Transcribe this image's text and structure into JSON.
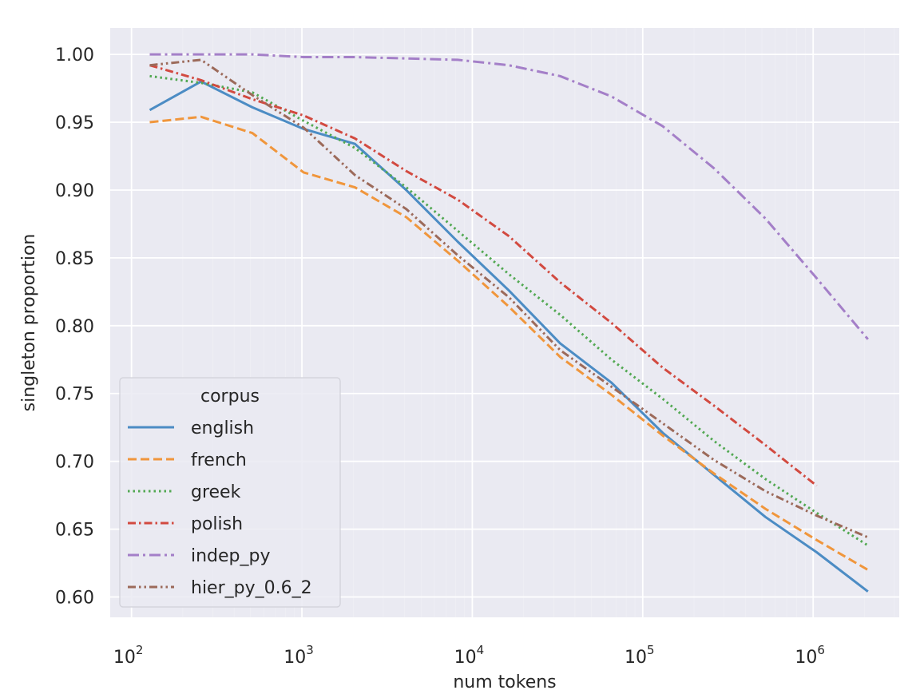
{
  "chart_data": {
    "type": "line",
    "xlabel": "num tokens",
    "ylabel": "singleton proportion",
    "xscale": "log",
    "xlim": [
      75,
      3200000
    ],
    "ylim": [
      0.585,
      1.0195
    ],
    "xticks": [
      {
        "value": 100,
        "base": "10",
        "exp": "2"
      },
      {
        "value": 1000,
        "base": "10",
        "exp": "3"
      },
      {
        "value": 10000,
        "base": "10",
        "exp": "4"
      },
      {
        "value": 100000,
        "base": "10",
        "exp": "5"
      },
      {
        "value": 1000000,
        "base": "10",
        "exp": "6"
      }
    ],
    "yticks": [
      {
        "value": 0.6,
        "label": "0.60"
      },
      {
        "value": 0.65,
        "label": "0.65"
      },
      {
        "value": 0.7,
        "label": "0.70"
      },
      {
        "value": 0.75,
        "label": "0.75"
      },
      {
        "value": 0.8,
        "label": "0.80"
      },
      {
        "value": 0.85,
        "label": "0.85"
      },
      {
        "value": 0.9,
        "label": "0.90"
      },
      {
        "value": 0.95,
        "label": "0.95"
      },
      {
        "value": 1.0,
        "label": "1.00"
      }
    ],
    "grid": true,
    "legend": {
      "title": "corpus",
      "placement": "lower-left"
    },
    "series": [
      {
        "name": "english",
        "color": "#4c8cc4",
        "dash": "solid",
        "x": [
          128,
          256,
          512,
          1024,
          2048,
          4096,
          8192,
          16384,
          32768,
          65536,
          131072,
          262144,
          524288,
          1048576,
          2097152
        ],
        "y": [
          0.959,
          0.98,
          0.961,
          0.945,
          0.934,
          0.9,
          0.862,
          0.826,
          0.787,
          0.758,
          0.721,
          0.69,
          0.659,
          0.633,
          0.604
        ]
      },
      {
        "name": "french",
        "color": "#f0963c",
        "dash": "dashed",
        "x": [
          128,
          256,
          512,
          1024,
          2048,
          4096,
          8192,
          16384,
          32768,
          65536,
          131072,
          262144,
          524288,
          1048576,
          2097152
        ],
        "y": [
          0.95,
          0.954,
          0.942,
          0.913,
          0.902,
          0.88,
          0.848,
          0.814,
          0.777,
          0.749,
          0.719,
          0.691,
          0.665,
          0.642,
          0.62
        ]
      },
      {
        "name": "greek",
        "color": "#52a852",
        "dash": "dotted",
        "x": [
          128,
          256,
          512,
          1024,
          2048,
          4096,
          8192,
          16384,
          32768,
          65536,
          131072,
          262144,
          524288,
          1048576,
          2097152
        ],
        "y": [
          0.984,
          0.979,
          0.972,
          0.951,
          0.931,
          0.902,
          0.87,
          0.838,
          0.808,
          0.775,
          0.746,
          0.715,
          0.687,
          0.662,
          0.638
        ]
      },
      {
        "name": "polish",
        "color": "#d24a40",
        "dash": "dashdot",
        "x": [
          128,
          256,
          512,
          1024,
          2048,
          4096,
          8192,
          16384,
          32768,
          65536,
          131072,
          262144,
          524288,
          1048576
        ],
        "y": [
          0.992,
          0.981,
          0.967,
          0.955,
          0.938,
          0.914,
          0.893,
          0.866,
          0.832,
          0.802,
          0.769,
          0.741,
          0.712,
          0.682
        ]
      },
      {
        "name": "indep_py",
        "color": "#a47fc8",
        "dash": "dashdot-long",
        "x": [
          128,
          256,
          512,
          1024,
          2048,
          4096,
          8192,
          16384,
          32768,
          65536,
          131072,
          262144,
          524288,
          1048576,
          2097152
        ],
        "y": [
          1.0,
          1.0,
          1.0,
          0.998,
          0.998,
          0.997,
          0.996,
          0.992,
          0.984,
          0.969,
          0.947,
          0.916,
          0.879,
          0.835,
          0.79
        ]
      },
      {
        "name": "hier_py_0.6_2",
        "color": "#9c6a5a",
        "dash": "dashdotdot",
        "x": [
          128,
          256,
          512,
          1024,
          2048,
          4096,
          8192,
          16384,
          32768,
          65536,
          131072,
          262144,
          524288,
          1048576,
          2097152
        ],
        "y": [
          0.992,
          0.996,
          0.97,
          0.946,
          0.911,
          0.886,
          0.852,
          0.821,
          0.782,
          0.755,
          0.728,
          0.701,
          0.678,
          0.66,
          0.644
        ]
      }
    ]
  }
}
